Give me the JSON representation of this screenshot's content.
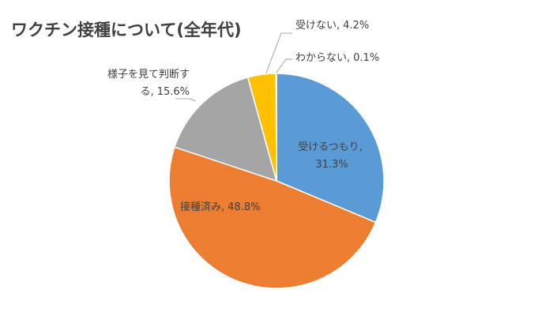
{
  "chart_data": {
    "type": "pie",
    "title": "ワクチン接種について(全年代)",
    "categories": [
      "受けるつもり",
      "接種済み",
      "様子を見て判断する",
      "受けない",
      "わからない"
    ],
    "values": [
      31.3,
      48.8,
      15.6,
      4.2,
      0.1
    ],
    "value_labels": [
      "31.3%",
      "48.8%",
      "15.6%",
      "4.2%",
      "0.1%"
    ],
    "colors": [
      "#5b9bd5",
      "#ed7d31",
      "#a5a5a5",
      "#ffc000",
      "#4472c4"
    ]
  }
}
